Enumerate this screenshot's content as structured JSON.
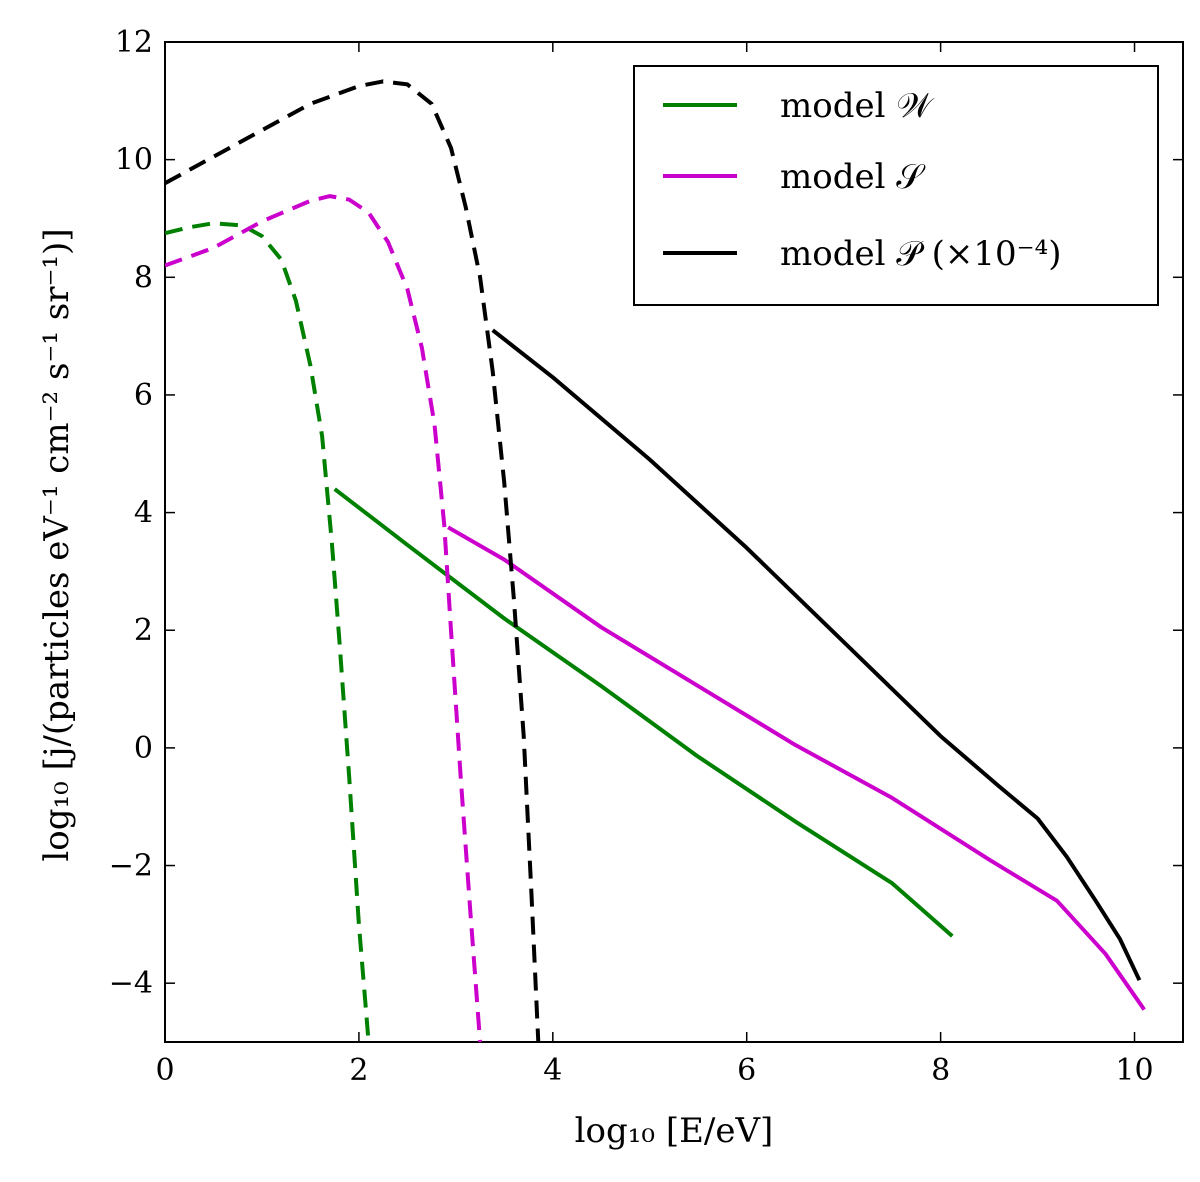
{
  "chart_data": {
    "type": "line",
    "xlabel": "log₁₀ [E/eV]",
    "ylabel": "log₁₀ [j/(particles eV⁻¹ cm⁻² s⁻¹ sr⁻¹)]",
    "xlim": [
      0,
      10.5
    ],
    "ylim": [
      -5,
      12
    ],
    "xticks": [
      0,
      2,
      4,
      6,
      8,
      10
    ],
    "yticks": [
      -4,
      -2,
      0,
      2,
      4,
      6,
      8,
      10,
      12
    ],
    "xtick_labels": [
      "0",
      "2",
      "4",
      "6",
      "8",
      "10"
    ],
    "ytick_labels": [
      "−4",
      "−2",
      "0",
      "2",
      "4",
      "6",
      "8",
      "10",
      "12"
    ],
    "grid": false,
    "legend_position": "top-right",
    "series": [
      {
        "name": "model 𝒲",
        "color": "#008000",
        "segments": [
          {
            "style": "dashed",
            "points": [
              [
                0,
                8.75
              ],
              [
                0.25,
                8.85
              ],
              [
                0.5,
                8.92
              ],
              [
                0.8,
                8.88
              ],
              [
                1.0,
                8.7
              ],
              [
                1.2,
                8.3
              ],
              [
                1.35,
                7.6
              ],
              [
                1.5,
                6.5
              ],
              [
                1.62,
                5.3
              ],
              [
                1.72,
                3.5
              ],
              [
                1.8,
                1.8
              ],
              [
                1.9,
                -0.5
              ],
              [
                2.0,
                -3.0
              ],
              [
                2.1,
                -5.0
              ]
            ]
          },
          {
            "style": "solid",
            "points": [
              [
                1.75,
                4.4
              ],
              [
                2.5,
                3.45
              ],
              [
                3.5,
                2.2
              ],
              [
                4.5,
                1.05
              ],
              [
                5.5,
                -0.15
              ],
              [
                6.5,
                -1.25
              ],
              [
                7.5,
                -2.3
              ],
              [
                8.12,
                -3.2
              ]
            ]
          }
        ]
      },
      {
        "name": "model 𝒮",
        "color": "#cc00cc",
        "segments": [
          {
            "style": "dashed",
            "points": [
              [
                0,
                8.2
              ],
              [
                0.5,
                8.5
              ],
              [
                1.0,
                8.95
              ],
              [
                1.5,
                9.3
              ],
              [
                1.7,
                9.38
              ],
              [
                1.9,
                9.32
              ],
              [
                2.1,
                9.1
              ],
              [
                2.3,
                8.6
              ],
              [
                2.5,
                7.8
              ],
              [
                2.65,
                6.8
              ],
              [
                2.78,
                5.5
              ],
              [
                2.88,
                3.8
              ],
              [
                2.95,
                2.0
              ],
              [
                3.05,
                -0.5
              ],
              [
                3.15,
                -2.8
              ],
              [
                3.25,
                -5.0
              ]
            ]
          },
          {
            "style": "solid",
            "points": [
              [
                2.92,
                3.75
              ],
              [
                3.5,
                3.2
              ],
              [
                4.5,
                2.05
              ],
              [
                5.5,
                1.05
              ],
              [
                6.5,
                0.05
              ],
              [
                7.5,
                -0.85
              ],
              [
                8.5,
                -1.9
              ],
              [
                9.2,
                -2.6
              ],
              [
                9.7,
                -3.5
              ],
              [
                10.1,
                -4.45
              ]
            ]
          }
        ]
      },
      {
        "name": "model 𝒫 (×10⁻⁴)",
        "color": "#000000",
        "segments": [
          {
            "style": "dashed",
            "points": [
              [
                0,
                9.6
              ],
              [
                0.5,
                10.05
              ],
              [
                1.0,
                10.5
              ],
              [
                1.5,
                10.95
              ],
              [
                2.0,
                11.25
              ],
              [
                2.25,
                11.33
              ],
              [
                2.5,
                11.28
              ],
              [
                2.75,
                10.95
              ],
              [
                2.95,
                10.2
              ],
              [
                3.1,
                9.2
              ],
              [
                3.25,
                8.0
              ],
              [
                3.38,
                6.4
              ],
              [
                3.5,
                4.5
              ],
              [
                3.6,
                2.5
              ],
              [
                3.7,
                0.2
              ],
              [
                3.78,
                -2.5
              ],
              [
                3.85,
                -5.0
              ]
            ]
          },
          {
            "style": "solid",
            "points": [
              [
                3.38,
                7.1
              ],
              [
                4.0,
                6.3
              ],
              [
                5.0,
                4.9
              ],
              [
                6.0,
                3.4
              ],
              [
                7.0,
                1.8
              ],
              [
                8.0,
                0.2
              ],
              [
                8.6,
                -0.65
              ],
              [
                9.0,
                -1.2
              ],
              [
                9.3,
                -1.85
              ],
              [
                9.6,
                -2.6
              ],
              [
                9.85,
                -3.25
              ],
              [
                10.05,
                -3.95
              ]
            ]
          }
        ]
      }
    ]
  }
}
